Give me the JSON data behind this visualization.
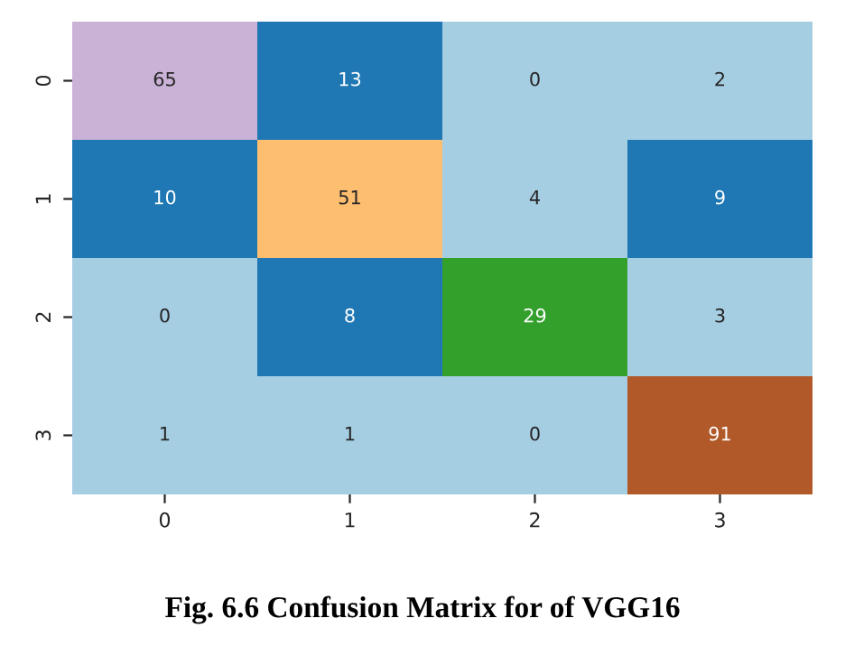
{
  "chart_data": {
    "type": "heatmap",
    "title": "Fig. 6.6 Confusion Matrix for of VGG16",
    "categories": [
      "0",
      "1",
      "2",
      "3"
    ],
    "y_categories": [
      "0",
      "1",
      "2",
      "3"
    ],
    "data_labels": true,
    "cells": [
      [
        65,
        13,
        0,
        2
      ],
      [
        10,
        51,
        4,
        9
      ],
      [
        0,
        8,
        29,
        3
      ],
      [
        1,
        1,
        0,
        91
      ]
    ]
  }
}
